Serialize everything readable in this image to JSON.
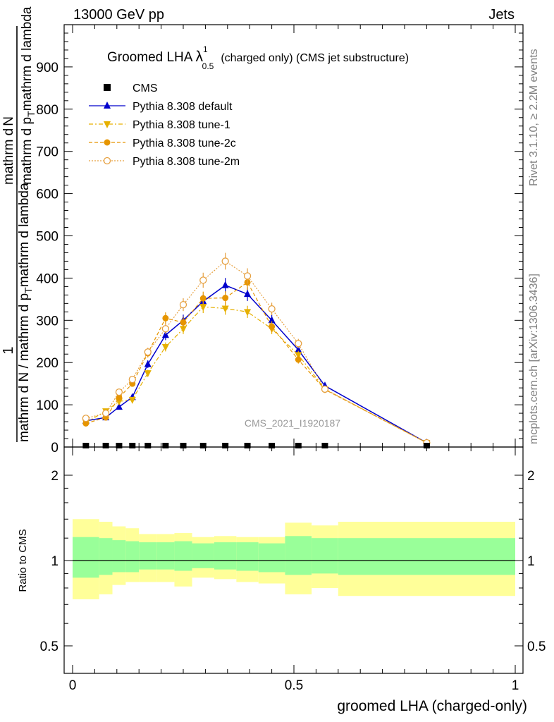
{
  "header": {
    "left": "13000 GeV pp",
    "right": "Jets"
  },
  "side": {
    "rivet": "Rivet 3.1.10, ≥ 2.2M events",
    "mcplots": "mcplots.cern.ch [arXiv:1306.3436]"
  },
  "watermark": "CMS_2021_I1920187",
  "chart_data": {
    "type": "line",
    "title_main": "Groomed LHA",
    "title_lambda": "λ",
    "title_sup": "1",
    "title_sub": "0.5",
    "title_suffix": "(charged only) (CMS jet substructure)",
    "xlabel": "groomed LHA (charged-only)",
    "ylabel_top": "1",
    "ylabel_bottom": "mathrm d N / mathrm d p",
    "ylabel_bottom_tsub": "T",
    "ylabel_bottom_suffix": "mathrm d lambda",
    "ylabel_right_num": "mathrm d",
    "ylabel_right_num2": "N",
    "ylabel_right_den": "mathrm d p",
    "ylabel_right_den_tsub": "T",
    "ylabel_right_den_suffix": "mathrm d lambda",
    "ratio_ylabel": "Ratio to CMS",
    "xlim": [
      0,
      1
    ],
    "ylim": [
      0,
      1000
    ],
    "ratio_ylim": [
      0.4,
      2.3
    ],
    "x_ticks": [
      "0",
      "0.5",
      "1"
    ],
    "y_ticks": [
      "0",
      "100",
      "200",
      "300",
      "400",
      "500",
      "600",
      "700",
      "800",
      "900"
    ],
    "ratio_ticks": [
      "0.5",
      "1",
      "2"
    ],
    "bin_edges": [
      0,
      0.06,
      0.09,
      0.12,
      0.15,
      0.19,
      0.23,
      0.27,
      0.32,
      0.37,
      0.42,
      0.48,
      0.54,
      0.6,
      1.0
    ],
    "x": [
      0.03,
      0.075,
      0.105,
      0.135,
      0.17,
      0.21,
      0.25,
      0.295,
      0.345,
      0.395,
      0.45,
      0.51,
      0.57,
      0.8
    ],
    "cms": [
      0,
      0,
      0,
      0,
      0,
      0,
      0,
      0,
      0,
      0,
      0,
      0,
      0,
      0
    ],
    "legend": [
      "CMS",
      "Pythia 8.308 default",
      "Pythia 8.308 tune-1",
      "Pythia 8.308 tune-2c",
      "Pythia 8.308 tune-2m"
    ],
    "series": [
      {
        "name": "Pythia 8.308 default",
        "color": "#0000cc",
        "marker": "triangle-up",
        "line": "solid",
        "values": [
          62,
          70,
          95,
          118,
          196,
          265,
          300,
          345,
          383,
          362,
          300,
          230,
          145,
          10
        ]
      },
      {
        "name": "Pythia 8.308 tune-1",
        "color": "#e6b000",
        "marker": "triangle-down",
        "line": "dashdot",
        "values": [
          58,
          85,
          108,
          112,
          175,
          237,
          280,
          332,
          328,
          320,
          280,
          218,
          137,
          10
        ]
      },
      {
        "name": "Pythia 8.308 tune-2c",
        "color": "#e69500",
        "marker": "circle-filled",
        "line": "dashed",
        "values": [
          56,
          70,
          117,
          150,
          222,
          305,
          295,
          352,
          353,
          390,
          285,
          207,
          136,
          10
        ]
      },
      {
        "name": "Pythia 8.308 tune-2m",
        "color": "#e6a040",
        "marker": "circle-open",
        "line": "dotted",
        "values": [
          68,
          80,
          130,
          160,
          225,
          280,
          337,
          395,
          440,
          405,
          327,
          245,
          137,
          10
        ]
      }
    ],
    "ratio_band_inner": [
      [
        0.87,
        1.21
      ],
      [
        0.89,
        1.2
      ],
      [
        0.91,
        1.18
      ],
      [
        0.91,
        1.17
      ],
      [
        0.93,
        1.16
      ],
      [
        0.93,
        1.16
      ],
      [
        0.92,
        1.17
      ],
      [
        0.94,
        1.15
      ],
      [
        0.93,
        1.16
      ],
      [
        0.92,
        1.16
      ],
      [
        0.91,
        1.15
      ],
      [
        0.89,
        1.22
      ],
      [
        0.9,
        1.2
      ],
      [
        0.89,
        1.2
      ]
    ],
    "ratio_band_outer": [
      [
        0.73,
        1.4
      ],
      [
        0.76,
        1.37
      ],
      [
        0.82,
        1.32
      ],
      [
        0.84,
        1.3
      ],
      [
        0.84,
        1.24
      ],
      [
        0.84,
        1.24
      ],
      [
        0.81,
        1.25
      ],
      [
        0.87,
        1.21
      ],
      [
        0.86,
        1.22
      ],
      [
        0.84,
        1.21
      ],
      [
        0.83,
        1.21
      ],
      [
        0.76,
        1.36
      ],
      [
        0.8,
        1.33
      ],
      [
        0.75,
        1.37
      ]
    ],
    "colors": {
      "band_inner": "#99ff99",
      "band_outer": "#ffff99",
      "frame": "#000000"
    }
  }
}
